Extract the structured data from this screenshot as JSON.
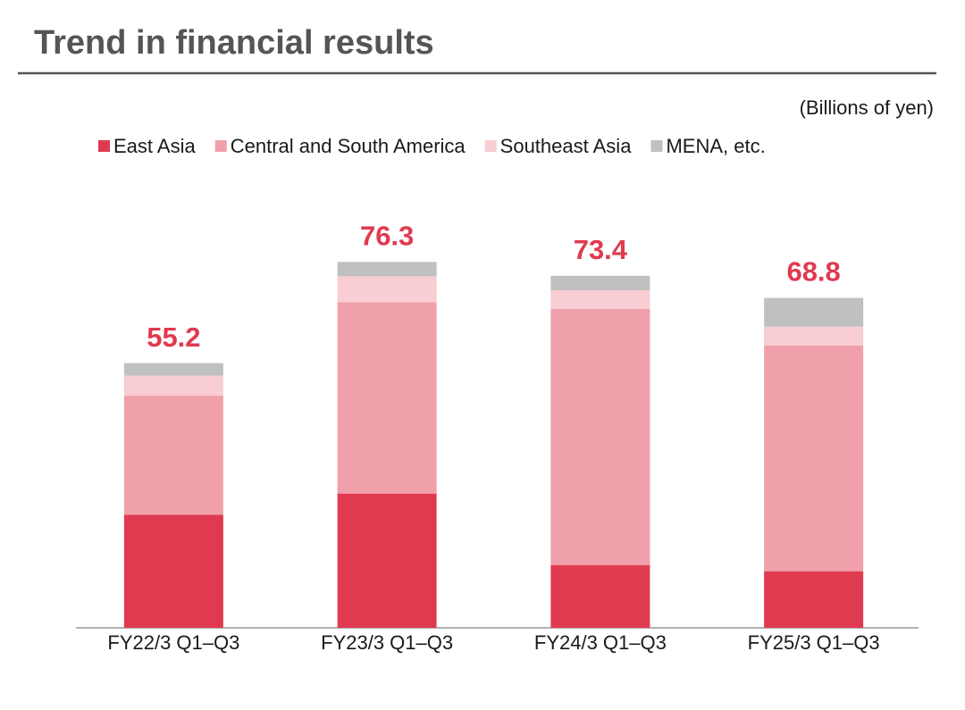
{
  "chart_data": {
    "type": "stacked-bar",
    "title": "Trend in financial results",
    "unit": "(Billions of yen)",
    "categories": [
      "FY22/3 Q1–Q3",
      "FY23/3 Q1–Q3",
      "FY24/3 Q1–Q3",
      "FY25/3 Q1–Q3"
    ],
    "series": [
      {
        "name": "East Asia",
        "color": "#e03a50",
        "values": [
          23.6,
          28.0,
          13.1,
          11.8
        ]
      },
      {
        "name": "Central and South America",
        "color": "#f0a0aa",
        "values": [
          24.8,
          39.9,
          53.4,
          47.1
        ]
      },
      {
        "name": "Southeast Asia",
        "color": "#f8cdd3",
        "values": [
          4.2,
          5.4,
          3.9,
          3.9
        ]
      },
      {
        "name": "MENA, etc.",
        "color": "#c0c0c0",
        "values": [
          2.6,
          3.0,
          3.0,
          6.0
        ]
      }
    ],
    "totals": [
      55.2,
      76.3,
      73.4,
      68.8
    ],
    "totals_color": "#e03a50"
  }
}
